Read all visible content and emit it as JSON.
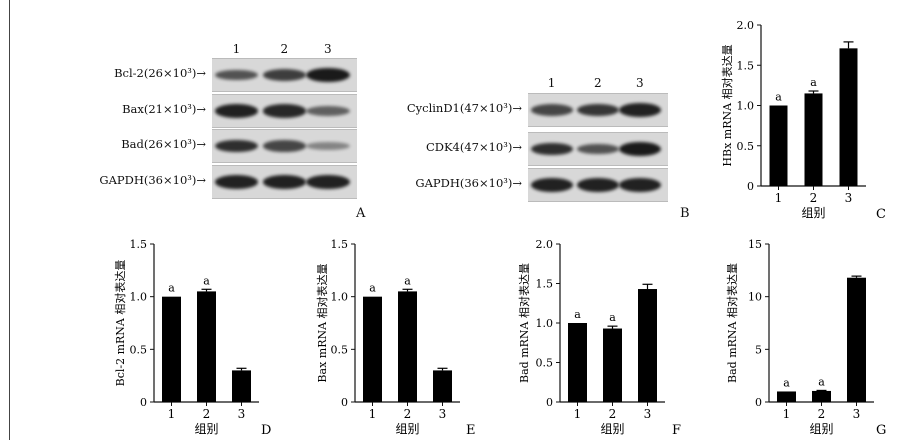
{
  "panelA": {
    "letter": "A",
    "lanes": [
      "1",
      "2",
      "3"
    ],
    "rows": [
      {
        "label": "Bcl-2(26×10³)→",
        "bands": [
          0.6,
          0.75,
          1.0
        ]
      },
      {
        "label": "Bax(21×10³)→",
        "bands": [
          0.95,
          0.9,
          0.5
        ]
      },
      {
        "label": "Bad(26×10³)→",
        "bands": [
          0.85,
          0.7,
          0.25
        ]
      },
      {
        "label": "GAPDH(36×10³)→",
        "bands": [
          0.95,
          0.95,
          0.95
        ]
      }
    ]
  },
  "panelB": {
    "letter": "B",
    "lanes": [
      "1",
      "2",
      "3"
    ],
    "rows": [
      {
        "label": "CyclinD1(47×10³)→",
        "bands": [
          0.7,
          0.8,
          0.95
        ]
      },
      {
        "label": "CDK4(47×10³)→",
        "bands": [
          0.85,
          0.6,
          1.0
        ]
      },
      {
        "label": "GAPDH(36×10³)→",
        "bands": [
          0.95,
          0.95,
          0.95
        ]
      }
    ]
  },
  "chart_data": [
    {
      "panel": "C",
      "type": "bar",
      "categories": [
        "1",
        "2",
        "3"
      ],
      "values": [
        1.0,
        1.15,
        1.71
      ],
      "errors": [
        0.0,
        0.03,
        0.08
      ],
      "annotations": [
        "a",
        "a",
        ""
      ],
      "xlabel": "组别",
      "ylabel": "HBx mRNA 相对表达量",
      "ylim": [
        0,
        2.0
      ],
      "yticks": [
        "0",
        "0.5",
        "1.0",
        "1.5",
        "2.0"
      ]
    },
    {
      "panel": "D",
      "type": "bar",
      "categories": [
        "1",
        "2",
        "3"
      ],
      "values": [
        1.0,
        1.05,
        0.3
      ],
      "errors": [
        0.0,
        0.02,
        0.02
      ],
      "annotations": [
        "a",
        "a",
        ""
      ],
      "xlabel": "组别",
      "ylabel": "Bcl-2 mRNA 相对表达量",
      "ylim": [
        0,
        1.5
      ],
      "yticks": [
        "0",
        "0.5",
        "1.0",
        "1.5"
      ]
    },
    {
      "panel": "E",
      "type": "bar",
      "categories": [
        "1",
        "2",
        "3"
      ],
      "values": [
        1.0,
        1.05,
        0.3
      ],
      "errors": [
        0.0,
        0.02,
        0.02
      ],
      "annotations": [
        "a",
        "a",
        ""
      ],
      "xlabel": "组别",
      "ylabel": "Bax mRNA 相对表达量",
      "ylim": [
        0,
        1.5
      ],
      "yticks": [
        "0",
        "0.5",
        "1.0",
        "1.5"
      ]
    },
    {
      "panel": "F",
      "type": "bar",
      "categories": [
        "1",
        "2",
        "3"
      ],
      "values": [
        1.0,
        0.93,
        1.43
      ],
      "errors": [
        0.0,
        0.03,
        0.06
      ],
      "annotations": [
        "a",
        "a",
        ""
      ],
      "xlabel": "组别",
      "ylabel": "Bad mRNA 相对表达量",
      "ylim": [
        0,
        2.0
      ],
      "yticks": [
        "0",
        "0.5",
        "1.0",
        "1.5",
        "2.0"
      ]
    },
    {
      "panel": "G",
      "type": "bar",
      "categories": [
        "1",
        "2",
        "3"
      ],
      "values": [
        1.0,
        1.05,
        11.8
      ],
      "errors": [
        0.0,
        0.05,
        0.15
      ],
      "annotations": [
        "a",
        "a",
        ""
      ],
      "xlabel": "组别",
      "ylabel": "Bad mRNA 相对表达量",
      "ylim": [
        0,
        15
      ],
      "yticks": [
        "0",
        "5",
        "10",
        "15"
      ]
    }
  ]
}
